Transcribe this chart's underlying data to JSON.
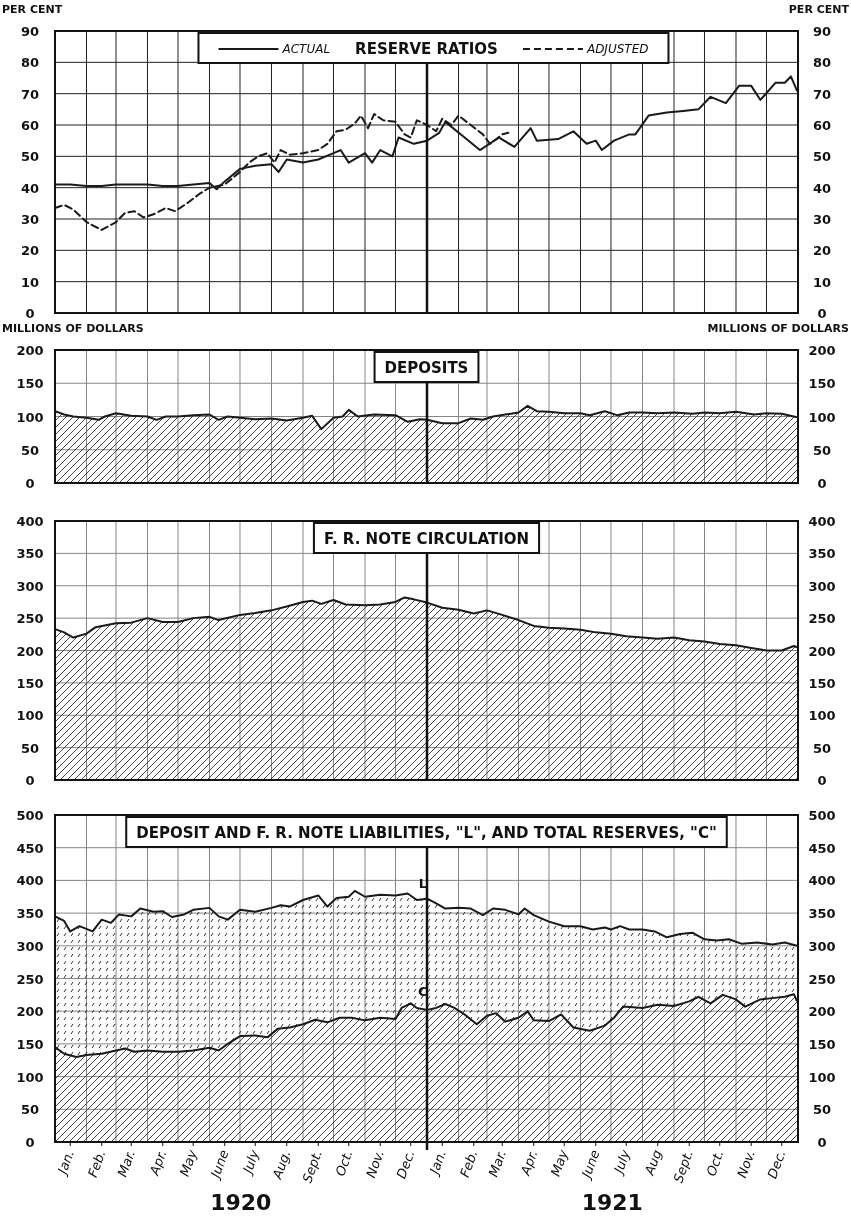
{
  "chart_data": [
    {
      "type": "line",
      "title": "RESERVE RATIOS",
      "ylabel": "PER CENT",
      "y2label": "PER CENT",
      "xlim": [
        "1920-01-01",
        "1922-01-01"
      ],
      "ylim": [
        0,
        90
      ],
      "yticks": [
        0,
        10,
        20,
        30,
        40,
        50,
        60,
        70,
        80,
        90
      ],
      "y2lim": [
        0,
        90
      ],
      "y2ticks": [
        0,
        10,
        20,
        30,
        40,
        50,
        60,
        70,
        80,
        90
      ],
      "xticks": [
        {
          "value": "1920-01-01",
          "label": null
        },
        {
          "value": "1920-02-01",
          "label": null
        },
        {
          "value": "1920-03-01",
          "label": null
        },
        {
          "value": "1920-04-01",
          "label": null
        },
        {
          "value": "1920-05-01",
          "label": null
        },
        {
          "value": "1920-06-01",
          "label": null
        },
        {
          "value": "1920-07-01",
          "label": null
        },
        {
          "value": "1920-08-01",
          "label": null
        },
        {
          "value": "1920-09-01",
          "label": null
        },
        {
          "value": "1920-10-01",
          "label": null
        },
        {
          "value": "1920-11-01",
          "label": null
        },
        {
          "value": "1920-12-01",
          "label": null
        },
        {
          "value": "1921-01-01",
          "label": null
        },
        {
          "value": "1921-02-01",
          "label": null
        },
        {
          "value": "1921-03-01",
          "label": null
        },
        {
          "value": "1921-04-01",
          "label": null
        },
        {
          "value": "1921-05-01",
          "label": null
        },
        {
          "value": "1921-06-01",
          "label": null
        },
        {
          "value": "1921-07-01",
          "label": null
        },
        {
          "value": "1921-08-01",
          "label": null
        },
        {
          "value": "1921-09-01",
          "label": null
        },
        {
          "value": "1921-10-01",
          "label": null
        },
        {
          "value": "1921-11-01",
          "label": null
        },
        {
          "value": "1921-12-01",
          "label": null
        },
        {
          "value": "1922-01-01",
          "label": null
        }
      ],
      "tick_labels": "y",
      "grid": true,
      "legend": "top",
      "ref_lines": [
        {
          "axis": "x",
          "value": "1921-01-01",
          "color": "#111111"
        }
      ],
      "series": [
        {
          "name": "ACTUAL",
          "color": "#1a1a1a",
          "line_style": "solid",
          "x": [
            "1920-01-01",
            "1920-01-16",
            "1920-02-01",
            "1920-02-16",
            "1920-03-01",
            "1920-03-16",
            "1920-04-01",
            "1920-04-16",
            "1920-05-01",
            "1920-05-16",
            "1920-06-01",
            "1920-06-08",
            "1920-06-16",
            "1920-07-01",
            "1920-07-16",
            "1920-08-01",
            "1920-08-08",
            "1920-08-16",
            "1920-09-01",
            "1920-09-16",
            "1920-10-01",
            "1920-10-08",
            "1920-10-16",
            "1920-11-01",
            "1920-11-08",
            "1920-11-16",
            "1920-11-28",
            "1920-12-04",
            "1920-12-19",
            "1921-01-01",
            "1921-01-13",
            "1921-01-19",
            "1921-02-07",
            "1921-02-22",
            "1921-03-13",
            "1921-03-28",
            "1921-04-13",
            "1921-04-19",
            "1921-05-10",
            "1921-05-25",
            "1921-06-07",
            "1921-06-16",
            "1921-06-22",
            "1921-07-04",
            "1921-07-19",
            "1921-07-25",
            "1921-08-07",
            "1921-08-25",
            "1921-09-10",
            "1921-09-25",
            "1921-10-07",
            "1921-10-22",
            "1921-11-04",
            "1921-11-16",
            "1921-11-25",
            "1921-12-10",
            "1921-12-19",
            "1921-12-25",
            "1921-12-31"
          ],
          "values": [
            41,
            41,
            40.5,
            40.5,
            41,
            41,
            41,
            40.5,
            40.5,
            41,
            41.5,
            39.5,
            42,
            46,
            47,
            47.5,
            45,
            49,
            48,
            49,
            51,
            52,
            48,
            51,
            48,
            52,
            50,
            56,
            54,
            55,
            57.5,
            61,
            56,
            52,
            56,
            53,
            59,
            55,
            55.5,
            58,
            54,
            55,
            52,
            55,
            57,
            57,
            63,
            64,
            64.5,
            65,
            69,
            67,
            72.5,
            72.5,
            68,
            73.5,
            73.5,
            75.5,
            71
          ]
        },
        {
          "name": "ADJUSTED",
          "color": "#1a1a1a",
          "line_style": "dashed",
          "x": [
            "1920-01-01",
            "1920-01-10",
            "1920-01-19",
            "1920-02-01",
            "1920-02-16",
            "1920-03-01",
            "1920-03-10",
            "1920-03-19",
            "1920-03-28",
            "1920-04-07",
            "1920-04-19",
            "1920-04-28",
            "1920-05-10",
            "1920-05-22",
            "1920-06-01",
            "1920-06-16",
            "1920-07-01",
            "1920-07-10",
            "1920-07-19",
            "1920-07-28",
            "1920-08-04",
            "1920-08-10",
            "1920-08-19",
            "1920-09-01",
            "1920-09-16",
            "1920-09-25",
            "1920-10-04",
            "1920-10-13",
            "1920-10-22",
            "1920-10-28",
            "1920-11-04",
            "1920-11-10",
            "1920-11-19",
            "1920-12-01",
            "1920-12-10",
            "1920-12-16",
            "1920-12-22",
            "1921-01-01",
            "1921-01-10",
            "1921-01-16",
            "1921-01-25",
            "1921-02-01",
            "1921-02-13",
            "1921-02-25",
            "1921-03-04",
            "1921-03-16",
            "1921-03-22"
          ],
          "values": [
            33.5,
            34.5,
            33,
            29,
            26.5,
            29,
            32,
            32.5,
            30.5,
            31.5,
            33.5,
            32.5,
            35,
            38,
            40,
            41,
            45,
            48,
            50,
            51,
            48,
            52,
            50.5,
            51,
            52,
            54,
            58,
            58.5,
            60.5,
            63,
            59,
            63.5,
            61.5,
            61,
            57,
            56,
            61.5,
            60,
            58,
            62,
            60,
            63,
            60,
            57,
            54,
            57,
            57.5
          ]
        }
      ]
    },
    {
      "type": "area",
      "title": "DEPOSITS",
      "ylabel": "MILLIONS OF DOLLARS",
      "y2label": "MILLIONS OF DOLLARS",
      "xlim": [
        "1920-01-01",
        "1922-01-01"
      ],
      "ylim": [
        0,
        200
      ],
      "yticks": [
        0,
        50,
        100,
        150,
        200
      ],
      "y2lim": [
        0,
        200
      ],
      "y2ticks": [
        0,
        50,
        100,
        150,
        200
      ],
      "xticks": [
        {
          "value": "1920-01-01",
          "label": null
        },
        {
          "value": "1920-02-01",
          "label": null
        },
        {
          "value": "1920-03-01",
          "label": null
        },
        {
          "value": "1920-04-01",
          "label": null
        },
        {
          "value": "1920-05-01",
          "label": null
        },
        {
          "value": "1920-06-01",
          "label": null
        },
        {
          "value": "1920-07-01",
          "label": null
        },
        {
          "value": "1920-08-01",
          "label": null
        },
        {
          "value": "1920-09-01",
          "label": null
        },
        {
          "value": "1920-10-01",
          "label": null
        },
        {
          "value": "1920-11-01",
          "label": null
        },
        {
          "value": "1920-12-01",
          "label": null
        },
        {
          "value": "1921-01-01",
          "label": null
        },
        {
          "value": "1921-02-01",
          "label": null
        },
        {
          "value": "1921-03-01",
          "label": null
        },
        {
          "value": "1921-04-01",
          "label": null
        },
        {
          "value": "1921-05-01",
          "label": null
        },
        {
          "value": "1921-06-01",
          "label": null
        },
        {
          "value": "1921-07-01",
          "label": null
        },
        {
          "value": "1921-08-01",
          "label": null
        },
        {
          "value": "1921-09-01",
          "label": null
        },
        {
          "value": "1921-10-01",
          "label": null
        },
        {
          "value": "1921-11-01",
          "label": null
        },
        {
          "value": "1921-12-01",
          "label": null
        },
        {
          "value": "1922-01-01",
          "label": null
        }
      ],
      "tick_labels": "y",
      "grid": true,
      "ref_lines": [
        {
          "axis": "x",
          "value": "1921-01-01",
          "color": "#111111"
        }
      ],
      "series": [
        {
          "color": "#1a1a1a",
          "x": [
            "1920-01-01",
            "1920-01-10",
            "1920-01-19",
            "1920-02-01",
            "1920-02-13",
            "1920-02-19",
            "1920-03-01",
            "1920-03-16",
            "1920-04-01",
            "1920-04-10",
            "1920-04-19",
            "1920-05-01",
            "1920-05-16",
            "1920-06-01",
            "1920-06-10",
            "1920-06-19",
            "1920-07-01",
            "1920-07-16",
            "1920-08-01",
            "1920-08-16",
            "1920-09-01",
            "1920-09-10",
            "1920-09-19",
            "1920-10-01",
            "1920-10-10",
            "1920-10-16",
            "1920-10-25",
            "1920-11-10",
            "1920-12-01",
            "1920-12-13",
            "1920-12-25",
            "1921-01-01",
            "1921-01-16",
            "1921-02-01",
            "1921-02-13",
            "1921-02-25",
            "1921-03-07",
            "1921-04-01",
            "1921-04-10",
            "1921-04-19",
            "1921-05-01",
            "1921-05-16",
            "1921-06-01",
            "1921-06-10",
            "1921-06-25",
            "1921-07-07",
            "1921-07-19",
            "1921-08-01",
            "1921-08-16",
            "1921-09-01",
            "1921-09-19",
            "1921-10-01",
            "1921-10-16",
            "1921-11-01",
            "1921-11-19",
            "1921-12-01",
            "1921-12-16",
            "1921-12-31"
          ],
          "values": [
            108,
            103,
            100,
            98,
            95,
            100,
            105,
            101,
            100,
            95,
            100,
            100,
            102,
            103,
            95,
            100,
            98,
            96,
            97,
            94,
            98,
            101,
            81,
            98,
            100,
            110,
            100,
            103,
            102,
            92,
            96,
            95,
            90,
            90,
            97,
            95,
            100,
            106,
            116,
            108,
            107,
            105,
            105,
            102,
            108,
            102,
            106,
            106,
            105,
            106,
            104,
            106,
            105,
            107,
            103,
            105,
            104,
            99
          ]
        }
      ]
    },
    {
      "type": "area",
      "title": "F. R. NOTE CIRCULATION",
      "xlim": [
        "1920-01-01",
        "1922-01-01"
      ],
      "ylim": [
        0,
        400
      ],
      "yticks": [
        0,
        50,
        100,
        150,
        200,
        250,
        300,
        350,
        400
      ],
      "y2lim": [
        0,
        400
      ],
      "y2ticks": [
        0,
        50,
        100,
        150,
        200,
        250,
        300,
        350,
        400
      ],
      "xticks": [
        {
          "value": "1920-01-01",
          "label": null
        },
        {
          "value": "1920-02-01",
          "label": null
        },
        {
          "value": "1920-03-01",
          "label": null
        },
        {
          "value": "1920-04-01",
          "label": null
        },
        {
          "value": "1920-05-01",
          "label": null
        },
        {
          "value": "1920-06-01",
          "label": null
        },
        {
          "value": "1920-07-01",
          "label": null
        },
        {
          "value": "1920-08-01",
          "label": null
        },
        {
          "value": "1920-09-01",
          "label": null
        },
        {
          "value": "1920-10-01",
          "label": null
        },
        {
          "value": "1920-11-01",
          "label": null
        },
        {
          "value": "1920-12-01",
          "label": null
        },
        {
          "value": "1921-01-01",
          "label": null
        },
        {
          "value": "1921-02-01",
          "label": null
        },
        {
          "value": "1921-03-01",
          "label": null
        },
        {
          "value": "1921-04-01",
          "label": null
        },
        {
          "value": "1921-05-01",
          "label": null
        },
        {
          "value": "1921-06-01",
          "label": null
        },
        {
          "value": "1921-07-01",
          "label": null
        },
        {
          "value": "1921-08-01",
          "label": null
        },
        {
          "value": "1921-09-01",
          "label": null
        },
        {
          "value": "1921-10-01",
          "label": null
        },
        {
          "value": "1921-11-01",
          "label": null
        },
        {
          "value": "1921-12-01",
          "label": null
        },
        {
          "value": "1922-01-01",
          "label": null
        }
      ],
      "tick_labels": "y",
      "grid": true,
      "ref_lines": [
        {
          "axis": "x",
          "value": "1921-01-01",
          "color": "#111111"
        }
      ],
      "series": [
        {
          "color": "#1a1a1a",
          "x": [
            "1920-01-01",
            "1920-01-10",
            "1920-01-19",
            "1920-02-01",
            "1920-02-10",
            "1920-03-01",
            "1920-03-16",
            "1920-04-01",
            "1920-04-16",
            "1920-05-01",
            "1920-05-16",
            "1920-06-01",
            "1920-06-10",
            "1920-07-01",
            "1920-07-16",
            "1920-08-01",
            "1920-08-16",
            "1920-09-01",
            "1920-09-10",
            "1920-09-19",
            "1920-10-01",
            "1920-10-13",
            "1920-11-01",
            "1920-11-16",
            "1920-12-01",
            "1920-12-10",
            "1920-12-19",
            "1921-01-01",
            "1921-01-16",
            "1921-02-01",
            "1921-02-16",
            "1921-03-01",
            "1921-03-16",
            "1921-04-01",
            "1921-04-16",
            "1921-05-01",
            "1921-05-16",
            "1921-06-01",
            "1921-06-16",
            "1921-07-01",
            "1921-07-16",
            "1921-08-01",
            "1921-08-16",
            "1921-09-01",
            "1921-09-16",
            "1921-10-01",
            "1921-10-16",
            "1921-11-01",
            "1921-11-16",
            "1921-12-01",
            "1921-12-16",
            "1921-12-28",
            "1921-12-31"
          ],
          "values": [
            233,
            228,
            220,
            226,
            236,
            242,
            243,
            250,
            244,
            244,
            250,
            252,
            247,
            255,
            258,
            262,
            268,
            275,
            277,
            272,
            278,
            271,
            270,
            271,
            275,
            282,
            279,
            274,
            266,
            263,
            257,
            262,
            255,
            247,
            238,
            235,
            234,
            232,
            228,
            226,
            222,
            220,
            218,
            220,
            216,
            214,
            210,
            208,
            204,
            200,
            200,
            207,
            205
          ]
        }
      ]
    },
    {
      "type": "area",
      "title": "DEPOSIT AND F. R. NOTE LIABILITIES, \"L\", AND TOTAL RESERVES, \"C\"",
      "xlim": [
        "1920-01-01",
        "1922-01-01"
      ],
      "ylim": [
        0,
        500
      ],
      "yticks": [
        0,
        50,
        100,
        150,
        200,
        250,
        300,
        350,
        400,
        450,
        500
      ],
      "y2lim": [
        0,
        500
      ],
      "y2ticks": [
        0,
        50,
        100,
        150,
        200,
        250,
        300,
        350,
        400,
        450,
        500
      ],
      "xticks": [
        {
          "value": "1920-01-01",
          "label": null
        },
        {
          "value": "1920-01-16",
          "label": "Jan."
        },
        {
          "value": "1920-02-01",
          "label": null
        },
        {
          "value": "1920-02-16",
          "label": "Feb."
        },
        {
          "value": "1920-03-01",
          "label": null
        },
        {
          "value": "1920-03-16",
          "label": "Mar."
        },
        {
          "value": "1920-04-01",
          "label": null
        },
        {
          "value": "1920-04-16",
          "label": "Apr."
        },
        {
          "value": "1920-05-01",
          "label": null
        },
        {
          "value": "1920-05-16",
          "label": "May"
        },
        {
          "value": "1920-06-01",
          "label": null
        },
        {
          "value": "1920-06-16",
          "label": "June"
        },
        {
          "value": "1920-07-01",
          "label": null
        },
        {
          "value": "1920-07-16",
          "label": "July"
        },
        {
          "value": "1920-08-01",
          "label": null
        },
        {
          "value": "1920-08-16",
          "label": "Aug."
        },
        {
          "value": "1920-09-01",
          "label": null
        },
        {
          "value": "1920-09-16",
          "label": "Sept."
        },
        {
          "value": "1920-10-01",
          "label": null
        },
        {
          "value": "1920-10-16",
          "label": "Oct."
        },
        {
          "value": "1920-11-01",
          "label": null
        },
        {
          "value": "1920-11-16",
          "label": "Nov."
        },
        {
          "value": "1920-12-01",
          "label": null
        },
        {
          "value": "1920-12-16",
          "label": "Dec."
        },
        {
          "value": "1921-01-01",
          "label": null
        },
        {
          "value": "1921-01-16",
          "label": "Jan."
        },
        {
          "value": "1921-02-01",
          "label": null
        },
        {
          "value": "1921-02-16",
          "label": "Feb."
        },
        {
          "value": "1921-03-01",
          "label": null
        },
        {
          "value": "1921-03-16",
          "label": "Mar."
        },
        {
          "value": "1921-04-01",
          "label": null
        },
        {
          "value": "1921-04-16",
          "label": "Apr."
        },
        {
          "value": "1921-05-01",
          "label": null
        },
        {
          "value": "1921-05-16",
          "label": "May"
        },
        {
          "value": "1921-06-01",
          "label": null
        },
        {
          "value": "1921-06-16",
          "label": "June"
        },
        {
          "value": "1921-07-01",
          "label": null
        },
        {
          "value": "1921-07-16",
          "label": "July"
        },
        {
          "value": "1921-08-01",
          "label": null
        },
        {
          "value": "1921-08-16",
          "label": "Aug"
        },
        {
          "value": "1921-09-01",
          "label": null
        },
        {
          "value": "1921-09-16",
          "label": "Sept."
        },
        {
          "value": "1921-10-01",
          "label": null
        },
        {
          "value": "1921-10-16",
          "label": "Oct."
        },
        {
          "value": "1921-11-01",
          "label": null
        },
        {
          "value": "1921-11-16",
          "label": "Nov."
        },
        {
          "value": "1921-12-01",
          "label": null
        },
        {
          "value": "1921-12-16",
          "label": "Dec."
        },
        {
          "value": "1922-01-01",
          "label": null
        }
      ],
      "grid": true,
      "ref_lines": [
        {
          "axis": "x",
          "value": "1921-01-01",
          "color": "#111111"
        }
      ],
      "annotations": [
        "1920",
        "1921"
      ],
      "series": [
        {
          "name": "L",
          "color": "#1a1a1a",
          "x": [
            "1920-01-01",
            "1920-01-10",
            "1920-01-16",
            "1920-01-25",
            "1920-02-07",
            "1920-02-16",
            "1920-02-25",
            "1920-03-04",
            "1920-03-16",
            "1920-03-25",
            "1920-04-07",
            "1920-04-16",
            "1920-04-25",
            "1920-05-07",
            "1920-05-16",
            "1920-06-01",
            "1920-06-10",
            "1920-06-19",
            "1920-07-01",
            "1920-07-16",
            "1920-08-01",
            "1920-08-10",
            "1920-08-19",
            "1920-09-01",
            "1920-09-16",
            "1920-09-25",
            "1920-10-04",
            "1920-10-16",
            "1920-10-22",
            "1920-11-01",
            "1920-11-16",
            "1920-12-01",
            "1920-12-13",
            "1920-12-22",
            "1921-01-01",
            "1921-01-10",
            "1921-01-19",
            "1921-02-01",
            "1921-02-13",
            "1921-02-25",
            "1921-03-07",
            "1921-03-19",
            "1921-04-01",
            "1921-04-07",
            "1921-04-16",
            "1921-05-01",
            "1921-05-16",
            "1921-06-01",
            "1921-06-13",
            "1921-06-25",
            "1921-07-01",
            "1921-07-10",
            "1921-07-19",
            "1921-08-01",
            "1921-08-13",
            "1921-08-25",
            "1921-09-07",
            "1921-09-19",
            "1921-10-01",
            "1921-10-13",
            "1921-10-25",
            "1921-11-07",
            "1921-11-22",
            "1921-12-07",
            "1921-12-19",
            "1921-12-31"
          ],
          "values": [
            345,
            338,
            322,
            330,
            322,
            340,
            335,
            348,
            345,
            357,
            352,
            353,
            344,
            348,
            355,
            358,
            345,
            340,
            355,
            352,
            358,
            362,
            360,
            370,
            377,
            360,
            373,
            375,
            384,
            375,
            378,
            377,
            380,
            370,
            372,
            365,
            357,
            358,
            357,
            347,
            357,
            355,
            348,
            357,
            347,
            337,
            330,
            330,
            325,
            328,
            325,
            330,
            325,
            325,
            322,
            313,
            318,
            320,
            310,
            308,
            310,
            303,
            305,
            302,
            305,
            300
          ]
        },
        {
          "name": "C",
          "color": "#1a1a1a",
          "x": [
            "1920-01-01",
            "1920-01-10",
            "1920-01-22",
            "1920-02-01",
            "1920-02-16",
            "1920-03-01",
            "1920-03-10",
            "1920-03-19",
            "1920-04-01",
            "1920-04-16",
            "1920-05-01",
            "1920-05-16",
            "1920-06-01",
            "1920-06-10",
            "1920-06-19",
            "1920-07-01",
            "1920-07-16",
            "1920-07-28",
            "1920-08-07",
            "1920-08-19",
            "1920-09-01",
            "1920-09-13",
            "1920-09-25",
            "1920-10-07",
            "1920-10-19",
            "1920-11-01",
            "1920-11-16",
            "1920-12-01",
            "1920-12-07",
            "1920-12-16",
            "1920-12-22",
            "1921-01-01",
            "1921-01-10",
            "1921-01-19",
            "1921-01-28",
            "1921-02-07",
            "1921-02-19",
            "1921-03-01",
            "1921-03-10",
            "1921-03-19",
            "1921-04-01",
            "1921-04-10",
            "1921-04-16",
            "1921-05-01",
            "1921-05-13",
            "1921-05-25",
            "1921-06-10",
            "1921-06-25",
            "1921-07-04",
            "1921-07-13",
            "1921-08-01",
            "1921-08-16",
            "1921-09-01",
            "1921-09-16",
            "1921-09-25",
            "1921-10-07",
            "1921-10-19",
            "1921-11-01",
            "1921-11-10",
            "1921-11-25",
            "1921-12-07",
            "1921-12-19",
            "1921-12-28",
            "1921-12-31"
          ],
          "values": [
            145,
            135,
            130,
            133,
            135,
            140,
            143,
            138,
            140,
            138,
            138,
            140,
            144,
            140,
            150,
            162,
            163,
            160,
            173,
            175,
            180,
            187,
            183,
            190,
            190,
            186,
            190,
            188,
            205,
            212,
            205,
            202,
            205,
            211,
            205,
            195,
            180,
            193,
            197,
            184,
            190,
            200,
            186,
            185,
            195,
            175,
            170,
            178,
            190,
            207,
            205,
            210,
            208,
            215,
            222,
            212,
            225,
            218,
            207,
            218,
            220,
            222,
            226,
            215
          ]
        }
      ]
    }
  ]
}
